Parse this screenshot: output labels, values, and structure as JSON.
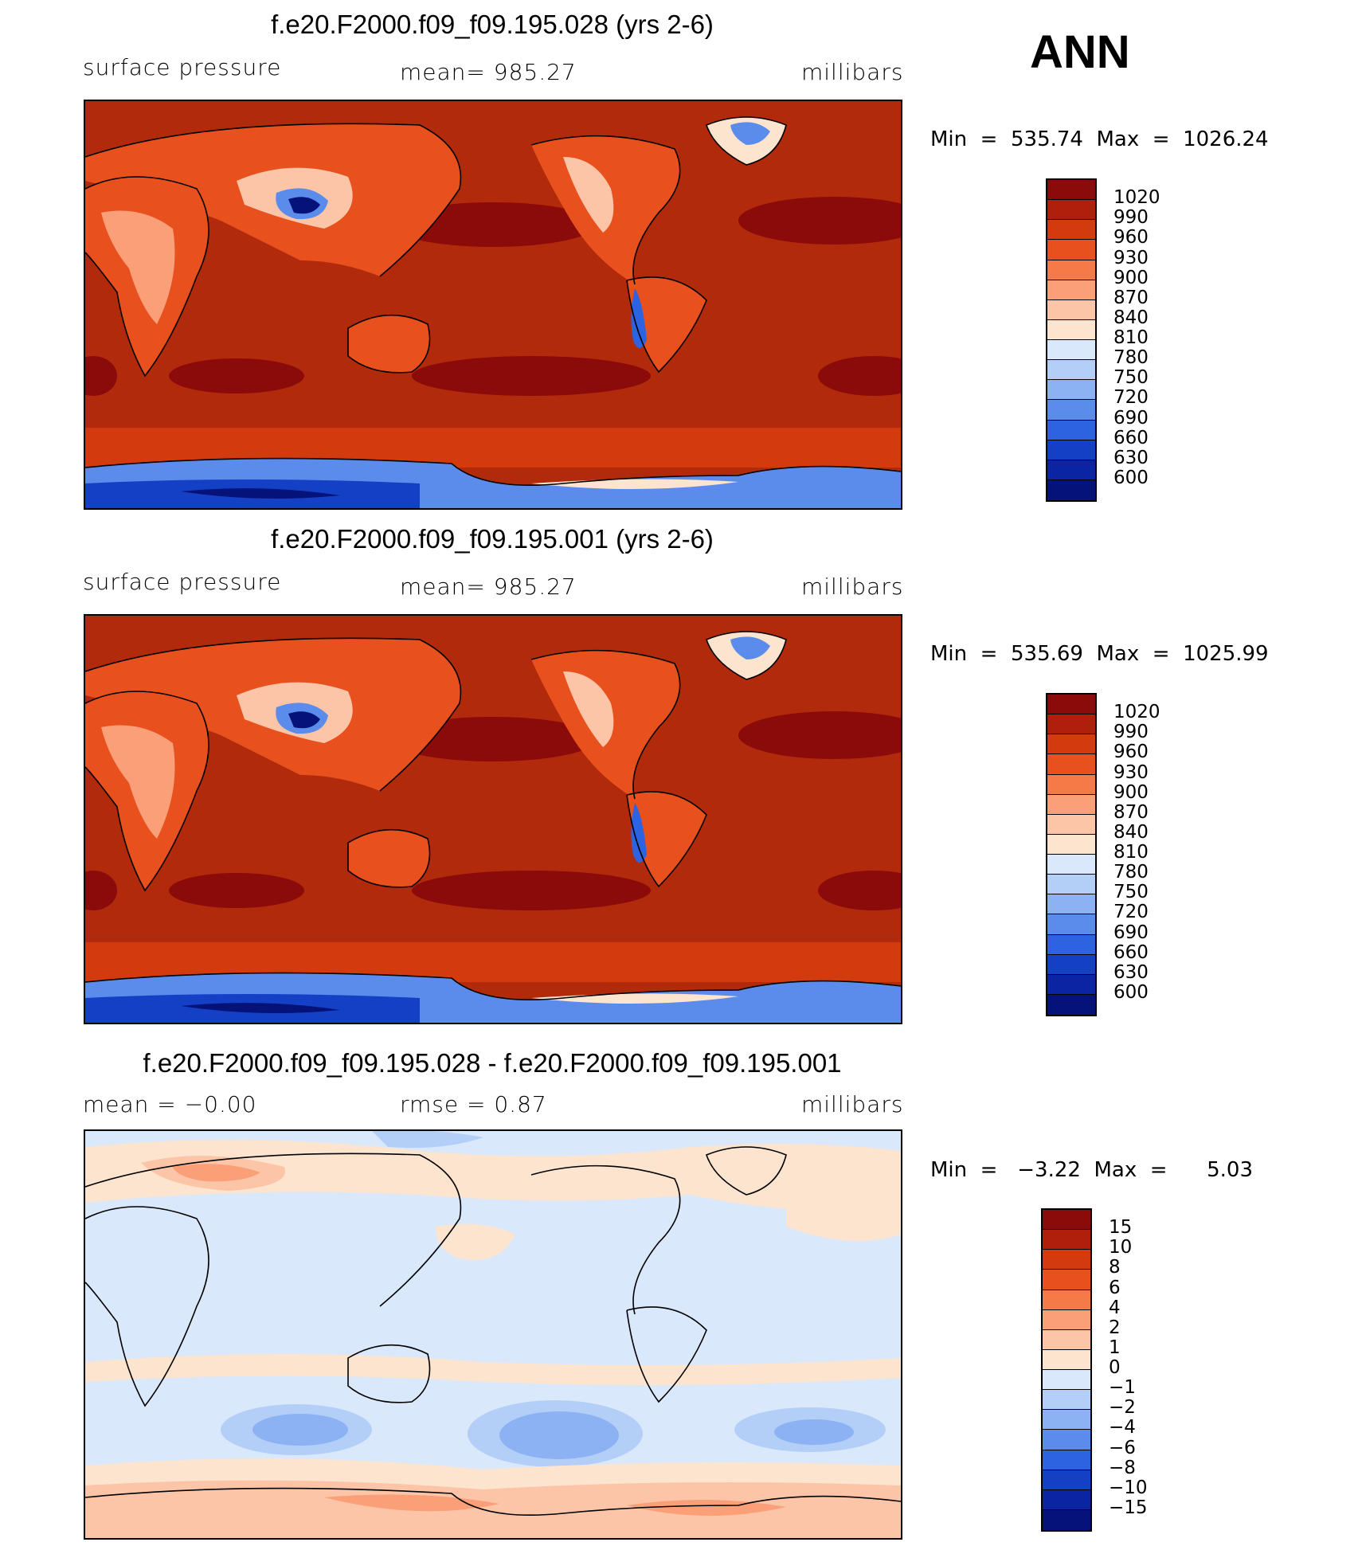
{
  "season": "ANN",
  "panels": [
    {
      "title": "f.e20.F2000.f09_f09.195.028 (yrs 2-6)",
      "left_label": "surface pressure",
      "center_label": "mean= 985.27",
      "right_label": "millibars",
      "minmax": "Min  =  535.74  Max  =  1026.24"
    },
    {
      "title": "f.e20.F2000.f09_f09.195.001 (yrs 2-6)",
      "left_label": "surface pressure",
      "center_label": "mean= 985.27",
      "right_label": "millibars",
      "minmax": "Min  =  535.69  Max  =  1025.99"
    },
    {
      "title": "f.e20.F2000.f09_f09.195.028 - f.e20.F2000.f09_f09.195.001",
      "left_label": "mean  =    −0.00",
      "center_label": "rmse  =     0.87",
      "right_label": "millibars",
      "minmax": "Min  =   −3.22  Max  =      5.03"
    }
  ],
  "colorbars": [
    {
      "levels": [
        "1020",
        "990",
        "960",
        "930",
        "900",
        "870",
        "840",
        "810",
        "780",
        "750",
        "720",
        "690",
        "660",
        "630",
        "600"
      ],
      "colors": [
        "#8b0a0a",
        "#b01e0c",
        "#d33b0f",
        "#e8501d",
        "#f57a48",
        "#fa9f78",
        "#fcc5a8",
        "#fde4cf",
        "#d9e8fb",
        "#b3cff8",
        "#8cb2f4",
        "#5b8cec",
        "#2d62e0",
        "#1440c6",
        "#0a24a4",
        "#04127a"
      ]
    },
    {
      "levels": [
        "1020",
        "990",
        "960",
        "930",
        "900",
        "870",
        "840",
        "810",
        "780",
        "750",
        "720",
        "690",
        "660",
        "630",
        "600"
      ],
      "colors": [
        "#8b0a0a",
        "#b01e0c",
        "#d33b0f",
        "#e8501d",
        "#f57a48",
        "#fa9f78",
        "#fcc5a8",
        "#fde4cf",
        "#d9e8fb",
        "#b3cff8",
        "#8cb2f4",
        "#5b8cec",
        "#2d62e0",
        "#1440c6",
        "#0a24a4",
        "#04127a"
      ]
    },
    {
      "levels": [
        "15",
        "10",
        "8",
        "6",
        "4",
        "2",
        "1",
        "0",
        "−1",
        "−2",
        "−4",
        "−6",
        "−8",
        "−10",
        "−15"
      ],
      "colors": [
        "#8b0a0a",
        "#b01e0c",
        "#d33b0f",
        "#e8501d",
        "#f57a48",
        "#fa9f78",
        "#fcc5a8",
        "#fde4cf",
        "#d9e8fb",
        "#b3cff8",
        "#8cb2f4",
        "#5b8cec",
        "#2d62e0",
        "#1440c6",
        "#0a24a4",
        "#04127a"
      ]
    }
  ]
}
